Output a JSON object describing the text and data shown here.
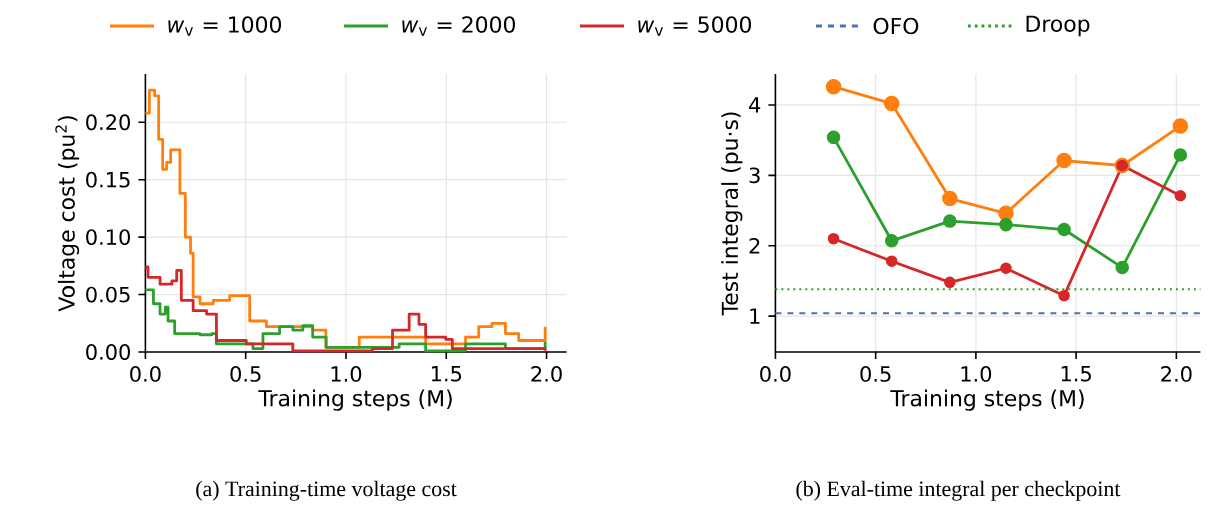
{
  "chart_data": [
    {
      "type": "step",
      "xlabel": "Training steps (M)",
      "ylabel": "Voltage cost (pu$^{2}$)",
      "annotations": [
        "(a) Training-time voltage cost"
      ],
      "xlim": [
        0,
        2.1
      ],
      "ylim": [
        0,
        0.242
      ],
      "xticks": [
        {
          "value": 0,
          "label": "0.0"
        },
        {
          "value": 0.5,
          "label": "0.5"
        },
        {
          "value": 1,
          "label": "1.0"
        },
        {
          "value": 1.5,
          "label": "1.5"
        },
        {
          "value": 2,
          "label": "2.0"
        }
      ],
      "yticks": [
        {
          "value": 0,
          "label": "0.00"
        },
        {
          "value": 0.05,
          "label": "0.05"
        },
        {
          "value": 0.1,
          "label": "0.10"
        },
        {
          "value": 0.15,
          "label": "0.15"
        },
        {
          "value": 0.2,
          "label": "0.20"
        }
      ],
      "grid": true,
      "legend": "top",
      "marker": "none",
      "line_style": "solid",
      "series": [
        {
          "name": "*w*$_{v}$ = 1000",
          "color": "#ff7f0e",
          "x": [
            0,
            0.02,
            0.046,
            0.066,
            0.086,
            0.106,
            0.126,
            0.159,
            0.172,
            0.199,
            0.225,
            0.238,
            0.272,
            0.338,
            0.42,
            0.497,
            0.52,
            0.603,
            0.834,
            0.9,
            1.066,
            1.232,
            1.397,
            1.596,
            1.662,
            1.728,
            1.795,
            1.861,
            1.993
          ],
          "values": [
            0.208,
            0.228,
            0.223,
            0.185,
            0.159,
            0.165,
            0.176,
            0.176,
            0.138,
            0.1,
            0.086,
            0.048,
            0.042,
            0.045,
            0.049,
            0.049,
            0.027,
            0.022,
            0.019,
            0.004,
            0.013,
            0.013,
            0.007,
            0.013,
            0.022,
            0.025,
            0.016,
            0.01,
            0.022
          ]
        },
        {
          "name": "*w*$_{v}$ = 2000",
          "color": "#2ca02c",
          "x": [
            0,
            0.04,
            0.073,
            0.099,
            0.113,
            0.146,
            0.272,
            0.331,
            0.354,
            0.536,
            0.586,
            0.669,
            0.735,
            0.785,
            0.834,
            0.901,
            1.265,
            1.397,
            1.596,
            1.795,
            1.993
          ],
          "values": [
            0.054,
            0.042,
            0.033,
            0.039,
            0.027,
            0.016,
            0.015,
            0.016,
            0.007,
            0.003,
            0.016,
            0.022,
            0.019,
            0.023,
            0.013,
            0.004,
            0.007,
            0.001,
            0.007,
            0.003,
            0.009
          ]
        },
        {
          "name": "*w*$_{v}$ = 5000",
          "color": "#d62728",
          "x": [
            0,
            0.013,
            0.073,
            0.132,
            0.156,
            0.179,
            0.238,
            0.305,
            0.354,
            0.503,
            0.735,
            1.132,
            1.232,
            1.315,
            1.364,
            1.397,
            1.497,
            1.53,
            1.993
          ],
          "values": [
            0.074,
            0.065,
            0.059,
            0.062,
            0.071,
            0.045,
            0.036,
            0.033,
            0.01,
            0.007,
            0.001,
            0.003,
            0.019,
            0.033,
            0.024,
            0.013,
            0.011,
            0.003,
            0.001
          ]
        }
      ]
    },
    {
      "type": "line",
      "xlabel": "Training steps (M)",
      "ylabel": "Test integral (pu·s)",
      "annotations": [
        "(b) Eval-time integral per checkpoint"
      ],
      "xlim": [
        0,
        2.12
      ],
      "ylim": [
        0.49,
        4.44
      ],
      "xticks": [
        {
          "value": 0,
          "label": "0.0"
        },
        {
          "value": 0.5,
          "label": "0.5"
        },
        {
          "value": 1,
          "label": "1.0"
        },
        {
          "value": 1.5,
          "label": "1.5"
        },
        {
          "value": 2,
          "label": "2.0"
        }
      ],
      "yticks": [
        1,
        2,
        3,
        4
      ],
      "grid": true,
      "legend": "top",
      "marker": "circle",
      "line_style": "solid",
      "x": [
        0.29,
        0.58,
        0.87,
        1.15,
        1.44,
        1.73,
        2.02
      ],
      "series": [
        {
          "color": "#ff7f0e",
          "values": [
            4.26,
            4.02,
            2.67,
            2.46,
            3.21,
            3.14,
            3.7
          ]
        },
        {
          "color": "#2ca02c",
          "values": [
            3.54,
            2.07,
            2.35,
            2.3,
            2.23,
            1.69,
            3.29
          ]
        },
        {
          "color": "#d62728",
          "values": [
            2.1,
            1.78,
            1.48,
            1.68,
            1.29,
            3.14,
            2.71
          ]
        }
      ],
      "ref_lines": [
        {
          "axis": "y",
          "value": 1.04,
          "label": "OFO",
          "color": "#4c72b0",
          "line_style": "dashed"
        },
        {
          "axis": "y",
          "value": 1.38,
          "label": "Droop",
          "color": "#2ca02c",
          "line_style": "dotted"
        }
      ]
    }
  ]
}
